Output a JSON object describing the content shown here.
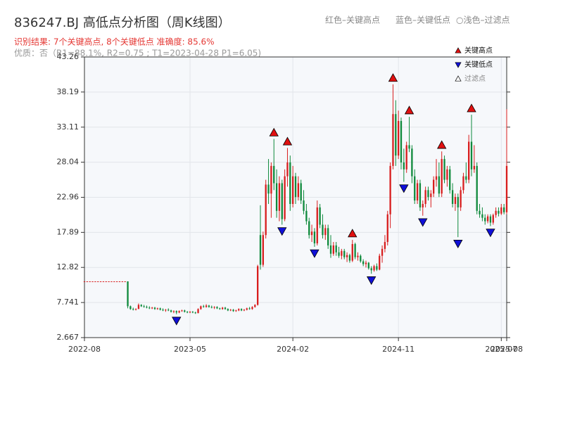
{
  "chart_data": {
    "type": "candlestick",
    "title": "836247.BJ 高低点分析图（周K线图）",
    "subtitle": "识别结果: 7个关键高点, 8个关键低点  准确度: 85.6%",
    "note": "优质：否（R1=88.1%, R2=0.75 ; T1=2023-04-28 P1=6.05)",
    "top_legend": [
      "红色–关键高点",
      "蓝色–关键低点",
      "○浅色–过滤点"
    ],
    "legend": "upper right",
    "grid": true,
    "up_color": "#d81e1e",
    "down_color": "#0f8a3c",
    "ylim": [
      2.667,
      43.26
    ],
    "yticks": [
      2.667,
      7.741,
      12.82,
      17.89,
      22.96,
      28.04,
      33.11,
      38.19,
      43.26
    ],
    "categories": [
      "2022-08",
      null,
      null,
      null,
      null,
      null,
      null,
      null,
      null,
      null,
      null,
      null,
      null,
      null,
      null,
      null,
      null,
      null,
      null,
      null,
      null,
      null,
      null,
      null,
      null,
      null,
      null,
      null,
      null,
      null,
      null,
      null,
      null,
      null,
      null,
      null,
      null,
      null,
      null,
      "2023-05",
      null,
      null,
      null,
      null,
      null,
      null,
      null,
      null,
      null,
      null,
      null,
      null,
      null,
      null,
      null,
      null,
      null,
      null,
      null,
      null,
      null,
      null,
      null,
      null,
      null,
      null,
      null,
      null,
      null,
      null,
      null,
      null,
      null,
      null,
      null,
      null,
      null,
      "2024-02",
      null,
      null,
      null,
      null,
      null,
      null,
      null,
      null,
      null,
      null,
      null,
      null,
      null,
      null,
      null,
      null,
      null,
      null,
      null,
      null,
      null,
      null,
      null,
      null,
      null,
      null,
      null,
      null,
      null,
      null,
      null,
      null,
      null,
      null,
      null,
      null,
      null,
      null,
      "2024-11",
      null,
      null,
      null,
      null,
      null,
      null,
      null,
      null,
      null,
      null,
      null,
      null,
      null,
      null,
      null,
      null,
      null,
      null,
      null,
      null,
      null,
      null,
      null,
      null,
      null,
      null,
      null,
      null,
      null,
      null,
      null,
      null,
      null,
      null,
      null,
      null,
      null,
      "2025-07",
      null,
      "2025-08"
    ],
    "ohlc": [
      [
        10.8,
        10.8,
        10.8,
        10.8
      ],
      [
        10.8,
        10.8,
        10.8,
        10.8
      ],
      [
        10.8,
        10.8,
        10.8,
        10.8
      ],
      [
        10.8,
        10.8,
        10.8,
        10.8
      ],
      [
        10.8,
        10.8,
        10.8,
        10.8
      ],
      [
        10.8,
        10.8,
        10.8,
        10.8
      ],
      [
        10.8,
        10.8,
        10.8,
        10.8
      ],
      [
        10.8,
        10.8,
        10.8,
        10.8
      ],
      [
        10.8,
        10.8,
        10.8,
        10.8
      ],
      [
        10.8,
        10.8,
        10.8,
        10.8
      ],
      [
        10.8,
        10.8,
        10.8,
        10.8
      ],
      [
        10.8,
        10.8,
        10.8,
        10.8
      ],
      [
        10.8,
        10.8,
        10.8,
        10.8
      ],
      [
        10.8,
        10.8,
        10.8,
        10.8
      ],
      [
        10.8,
        10.8,
        10.8,
        10.8
      ],
      [
        10.8,
        10.8,
        10.8,
        10.8
      ],
      [
        10.8,
        10.8,
        6.9,
        7.2
      ],
      [
        7.2,
        7.3,
        6.7,
        6.8
      ],
      [
        6.8,
        7.0,
        6.6,
        6.7
      ],
      [
        6.7,
        6.9,
        6.6,
        6.8
      ],
      [
        6.8,
        7.6,
        6.8,
        7.4
      ],
      [
        7.4,
        7.5,
        7.1,
        7.2
      ],
      [
        7.2,
        7.4,
        7.0,
        7.1
      ],
      [
        7.1,
        7.3,
        6.9,
        7.0
      ],
      [
        7.0,
        7.2,
        6.8,
        6.9
      ],
      [
        6.9,
        7.1,
        6.8,
        7.0
      ],
      [
        7.0,
        7.1,
        6.7,
        6.8
      ],
      [
        6.8,
        7.0,
        6.7,
        6.9
      ],
      [
        6.9,
        7.0,
        6.6,
        6.7
      ],
      [
        6.7,
        6.9,
        6.5,
        6.6
      ],
      [
        6.6,
        6.8,
        6.4,
        6.7
      ],
      [
        6.7,
        6.9,
        6.5,
        6.6
      ],
      [
        6.6,
        6.7,
        6.3,
        6.4
      ],
      [
        6.4,
        6.6,
        6.2,
        6.5
      ],
      [
        6.5,
        6.6,
        6.05,
        6.3
      ],
      [
        6.3,
        6.6,
        6.2,
        6.5
      ],
      [
        6.5,
        6.7,
        6.4,
        6.6
      ],
      [
        6.6,
        6.7,
        6.3,
        6.4
      ],
      [
        6.4,
        6.5,
        6.2,
        6.3
      ],
      [
        6.3,
        6.5,
        6.2,
        6.4
      ],
      [
        6.4,
        6.5,
        6.2,
        6.3
      ],
      [
        6.3,
        6.4,
        6.1,
        6.2
      ],
      [
        6.2,
        6.9,
        6.2,
        6.8
      ],
      [
        6.8,
        7.3,
        6.7,
        7.2
      ],
      [
        7.2,
        7.4,
        7.0,
        7.1
      ],
      [
        7.1,
        7.5,
        7.0,
        7.3
      ],
      [
        7.3,
        7.4,
        7.0,
        7.1
      ],
      [
        7.1,
        7.3,
        6.9,
        7.0
      ],
      [
        7.0,
        7.2,
        6.8,
        7.1
      ],
      [
        7.1,
        7.2,
        6.8,
        6.9
      ],
      [
        6.9,
        7.0,
        6.7,
        6.8
      ],
      [
        6.8,
        7.1,
        6.7,
        7.0
      ],
      [
        7.0,
        7.1,
        6.7,
        6.8
      ],
      [
        6.8,
        6.9,
        6.5,
        6.6
      ],
      [
        6.6,
        6.8,
        6.5,
        6.7
      ],
      [
        6.7,
        6.8,
        6.4,
        6.5
      ],
      [
        6.5,
        6.7,
        6.4,
        6.6
      ],
      [
        6.6,
        6.9,
        6.5,
        6.8
      ],
      [
        6.8,
        6.9,
        6.5,
        6.6
      ],
      [
        6.6,
        6.8,
        6.5,
        6.7
      ],
      [
        6.7,
        7.0,
        6.6,
        6.9
      ],
      [
        6.9,
        7.1,
        6.7,
        6.8
      ],
      [
        6.8,
        7.2,
        6.7,
        7.1
      ],
      [
        7.1,
        7.5,
        7.0,
        7.4
      ],
      [
        7.4,
        13.2,
        7.3,
        13.0
      ],
      [
        17.5,
        21.8,
        12.5,
        13.2
      ],
      [
        13.2,
        18.0,
        12.9,
        17.5
      ],
      [
        17.5,
        25.5,
        17.0,
        24.8
      ],
      [
        24.8,
        28.5,
        22.0,
        23.5
      ],
      [
        23.5,
        28.0,
        20.0,
        27.5
      ],
      [
        27.5,
        31.4,
        24.0,
        25.0
      ],
      [
        25.0,
        27.0,
        20.0,
        21.0
      ],
      [
        21.0,
        26.0,
        19.5,
        25.0
      ],
      [
        25.0,
        25.5,
        19.0,
        19.8
      ],
      [
        19.8,
        27.0,
        19.5,
        26.0
      ],
      [
        26.0,
        30.1,
        24.5,
        28.0
      ],
      [
        28.0,
        29.0,
        21.0,
        22.0
      ],
      [
        22.0,
        27.5,
        21.5,
        26.0
      ],
      [
        26.0,
        26.5,
        22.0,
        23.0
      ],
      [
        23.0,
        26.0,
        22.5,
        25.0
      ],
      [
        25.0,
        25.5,
        22.0,
        22.5
      ],
      [
        22.5,
        24.0,
        20.5,
        21.0
      ],
      [
        21.0,
        22.0,
        19.0,
        19.5
      ],
      [
        19.5,
        20.0,
        17.0,
        17.5
      ],
      [
        17.5,
        19.0,
        16.5,
        18.0
      ],
      [
        18.0,
        18.5,
        15.8,
        16.3
      ],
      [
        16.3,
        22.5,
        16.0,
        21.5
      ],
      [
        21.5,
        22.0,
        18.5,
        19.0
      ],
      [
        19.0,
        20.5,
        17.0,
        17.5
      ],
      [
        17.5,
        19.0,
        16.8,
        18.5
      ],
      [
        18.5,
        19.0,
        15.5,
        16.0
      ],
      [
        16.0,
        17.5,
        14.2,
        14.8
      ],
      [
        14.8,
        16.5,
        14.5,
        16.0
      ],
      [
        16.0,
        16.5,
        14.5,
        15.0
      ],
      [
        15.0,
        15.8,
        14.2,
        14.5
      ],
      [
        14.5,
        15.5,
        14.0,
        15.2
      ],
      [
        15.2,
        15.5,
        14.0,
        14.3
      ],
      [
        14.3,
        15.0,
        13.6,
        14.6
      ],
      [
        14.6,
        14.8,
        13.5,
        13.8
      ],
      [
        13.8,
        16.8,
        13.6,
        16.2
      ],
      [
        16.2,
        16.4,
        14.0,
        14.3
      ],
      [
        14.3,
        15.0,
        13.8,
        14.5
      ],
      [
        14.5,
        14.7,
        13.5,
        13.7
      ],
      [
        13.7,
        14.0,
        13.0,
        13.3
      ],
      [
        13.3,
        13.8,
        12.8,
        13.5
      ],
      [
        13.5,
        13.6,
        12.5,
        12.7
      ],
      [
        12.7,
        13.0,
        11.9,
        12.4
      ],
      [
        12.4,
        13.2,
        12.2,
        13.0
      ],
      [
        13.0,
        13.4,
        12.3,
        12.5
      ],
      [
        12.5,
        14.8,
        12.4,
        14.5
      ],
      [
        14.5,
        16.0,
        13.5,
        15.5
      ],
      [
        15.5,
        17.5,
        15.0,
        16.5
      ],
      [
        16.5,
        21.0,
        16.0,
        20.5
      ],
      [
        20.5,
        28.0,
        18.5,
        27.5
      ],
      [
        27.5,
        39.3,
        27.0,
        35.0
      ],
      [
        35.0,
        37.0,
        27.5,
        29.0
      ],
      [
        29.0,
        35.5,
        28.5,
        34.0
      ],
      [
        34.0,
        34.5,
        27.0,
        28.0
      ],
      [
        28.0,
        30.0,
        25.2,
        27.0
      ],
      [
        27.0,
        31.0,
        26.5,
        30.5
      ],
      [
        30.5,
        34.6,
        29.5,
        30.0
      ],
      [
        30.0,
        30.5,
        25.0,
        26.0
      ],
      [
        26.0,
        27.0,
        22.0,
        22.5
      ],
      [
        22.5,
        25.5,
        22.0,
        25.0
      ],
      [
        25.0,
        25.5,
        21.0,
        21.5
      ],
      [
        21.5,
        22.5,
        20.3,
        22.0
      ],
      [
        22.0,
        24.5,
        21.5,
        24.0
      ],
      [
        24.0,
        24.5,
        22.5,
        23.0
      ],
      [
        23.0,
        24.0,
        21.5,
        23.5
      ],
      [
        23.5,
        26.0,
        23.0,
        25.5
      ],
      [
        25.5,
        28.5,
        24.5,
        26.0
      ],
      [
        26.0,
        28.0,
        23.0,
        23.5
      ],
      [
        23.5,
        29.6,
        23.0,
        28.5
      ],
      [
        28.5,
        29.0,
        25.0,
        25.5
      ],
      [
        25.5,
        27.5,
        24.5,
        27.0
      ],
      [
        27.0,
        27.5,
        23.5,
        24.0
      ],
      [
        24.0,
        25.0,
        21.5,
        22.0
      ],
      [
        22.0,
        23.5,
        21.0,
        23.0
      ],
      [
        23.0,
        23.5,
        17.2,
        21.5
      ],
      [
        21.5,
        24.5,
        21.0,
        24.0
      ],
      [
        24.0,
        26.5,
        23.5,
        26.0
      ],
      [
        26.0,
        28.0,
        25.0,
        25.5
      ],
      [
        25.5,
        32.0,
        25.0,
        31.0
      ],
      [
        31.0,
        34.9,
        26.0,
        27.0
      ],
      [
        27.0,
        30.5,
        26.5,
        27.5
      ],
      [
        27.5,
        28.0,
        20.5,
        21.0
      ],
      [
        21.0,
        22.0,
        20.0,
        20.5
      ],
      [
        20.5,
        21.5,
        19.5,
        20.0
      ],
      [
        20.0,
        20.5,
        19.0,
        19.5
      ],
      [
        19.5,
        20.5,
        19.2,
        20.2
      ],
      [
        20.2,
        20.5,
        18.8,
        19.3
      ],
      [
        19.3,
        20.6,
        19.0,
        20.4
      ],
      [
        20.4,
        21.5,
        20.0,
        21.0
      ],
      [
        21.0,
        21.5,
        20.2,
        20.6
      ],
      [
        20.6,
        22.0,
        20.4,
        21.5
      ],
      [
        21.5,
        22.0,
        20.5,
        20.8
      ],
      [
        20.8,
        35.7,
        20.5,
        27.5
      ]
    ],
    "markers": [
      {
        "name": "关键高点",
        "color": "#e01010",
        "direction": "up",
        "values": [
          null,
          null,
          null,
          null,
          null,
          null,
          null,
          null,
          null,
          null,
          null,
          null,
          null,
          null,
          null,
          null,
          null,
          null,
          null,
          null,
          null,
          null,
          null,
          null,
          null,
          null,
          null,
          null,
          null,
          null,
          null,
          null,
          null,
          null,
          null,
          null,
          null,
          null,
          null,
          null,
          null,
          null,
          null,
          null,
          null,
          null,
          null,
          null,
          null,
          null,
          null,
          null,
          null,
          null,
          null,
          null,
          null,
          null,
          null,
          null,
          null,
          null,
          null,
          null,
          null,
          null,
          null,
          null,
          null,
          null,
          31.4,
          null,
          null,
          null,
          null,
          30.1,
          null,
          null,
          null,
          null,
          null,
          null,
          null,
          null,
          null,
          null,
          null,
          null,
          null,
          null,
          null,
          null,
          null,
          null,
          null,
          null,
          null,
          null,
          null,
          16.8,
          null,
          null,
          null,
          null,
          null,
          null,
          null,
          null,
          null,
          null,
          null,
          null,
          null,
          null,
          39.3,
          null,
          null,
          null,
          null,
          null,
          34.6,
          null,
          null,
          null,
          null,
          null,
          null,
          null,
          null,
          null,
          null,
          null,
          29.6,
          null,
          null,
          null,
          null,
          null,
          null,
          null,
          null,
          null,
          null,
          34.9,
          null,
          null,
          null,
          null,
          null,
          null,
          null,
          null,
          null,
          null,
          null,
          null,
          null
        ]
      },
      {
        "name": "关键低点",
        "color": "#1010d8",
        "direction": "down",
        "values": [
          null,
          null,
          null,
          null,
          null,
          null,
          null,
          null,
          null,
          null,
          null,
          null,
          null,
          null,
          null,
          null,
          null,
          null,
          null,
          null,
          null,
          null,
          null,
          null,
          null,
          null,
          null,
          null,
          null,
          null,
          null,
          null,
          null,
          null,
          6.05,
          null,
          null,
          null,
          null,
          null,
          null,
          null,
          null,
          null,
          null,
          null,
          null,
          null,
          null,
          null,
          null,
          null,
          null,
          null,
          null,
          null,
          null,
          null,
          null,
          null,
          null,
          null,
          null,
          null,
          null,
          null,
          null,
          null,
          null,
          null,
          null,
          null,
          null,
          19,
          null,
          null,
          null,
          null,
          null,
          null,
          null,
          null,
          null,
          null,
          null,
          15.8,
          null,
          null,
          null,
          null,
          null,
          null,
          null,
          null,
          null,
          null,
          null,
          null,
          null,
          null,
          null,
          null,
          null,
          null,
          null,
          null,
          11.9,
          null,
          null,
          null,
          null,
          null,
          null,
          null,
          null,
          null,
          null,
          null,
          25.2,
          null,
          null,
          null,
          null,
          null,
          null,
          20.3,
          null,
          null,
          null,
          null,
          null,
          null,
          null,
          null,
          null,
          null,
          null,
          null,
          17.2,
          null,
          null,
          null,
          null,
          null,
          null,
          null,
          null,
          null,
          null,
          null,
          18.8,
          null,
          null,
          null,
          null,
          null,
          null
        ]
      },
      {
        "name": "过滤点",
        "color": "#ffffff",
        "direction": "up"
      }
    ]
  }
}
